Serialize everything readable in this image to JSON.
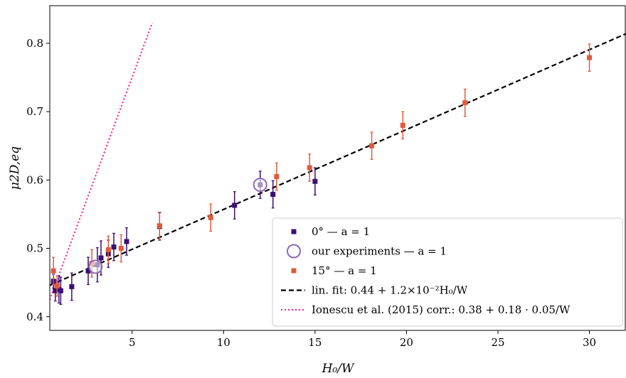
{
  "chart_data": {
    "type": "scatter",
    "xlabel": "H₀/W",
    "ylabel": "μ2D,eq",
    "xlim": [
      0.5,
      32
    ],
    "ylim": [
      0.38,
      0.855
    ],
    "xticks": [
      5,
      10,
      15,
      20,
      25,
      30
    ],
    "yticks": [
      0.4,
      0.5,
      0.6,
      0.7,
      0.8
    ],
    "grid": false,
    "legend_position": "bottom-right",
    "colors": {
      "zero": "#3b0f70",
      "experiments": "#8c6bb1",
      "fifteen": "#e05a3b",
      "fit": "#000000",
      "ionescu": "#ff1493"
    },
    "series": [
      {
        "name": "0° — a = 1",
        "marker": "square",
        "points": [
          {
            "x": 0.7,
            "y": 0.452,
            "err": 0.01
          },
          {
            "x": 0.8,
            "y": 0.438,
            "err": 0.015
          },
          {
            "x": 1.0,
            "y": 0.44,
            "err": 0.02
          },
          {
            "x": 1.1,
            "y": 0.438,
            "err": 0.02
          },
          {
            "x": 1.7,
            "y": 0.444,
            "err": 0.02
          },
          {
            "x": 2.6,
            "y": 0.467,
            "err": 0.02
          },
          {
            "x": 3.1,
            "y": 0.476,
            "err": 0.025
          },
          {
            "x": 3.3,
            "y": 0.486,
            "err": 0.025
          },
          {
            "x": 3.7,
            "y": 0.492,
            "err": 0.02
          },
          {
            "x": 4.0,
            "y": 0.502,
            "err": 0.02
          },
          {
            "x": 4.7,
            "y": 0.51,
            "err": 0.02
          },
          {
            "x": 6.5,
            "y": 0.532,
            "err": 0.02
          },
          {
            "x": 10.6,
            "y": 0.563,
            "err": 0.02
          },
          {
            "x": 12.0,
            "y": 0.593,
            "err": 0.02
          },
          {
            "x": 12.7,
            "y": 0.579,
            "err": 0.02
          },
          {
            "x": 15.0,
            "y": 0.598,
            "err": 0.02
          }
        ]
      },
      {
        "name": "our experiments — a = 1",
        "marker": "circle",
        "points": [
          {
            "x": 3.0,
            "y": 0.473
          },
          {
            "x": 12.0,
            "y": 0.593
          }
        ]
      },
      {
        "name": "15° — a = 1",
        "marker": "square",
        "points": [
          {
            "x": 0.7,
            "y": 0.467,
            "err": 0.02
          },
          {
            "x": 0.9,
            "y": 0.445,
            "err": 0.015
          },
          {
            "x": 2.8,
            "y": 0.478,
            "err": 0.02
          },
          {
            "x": 3.7,
            "y": 0.498,
            "err": 0.02
          },
          {
            "x": 4.4,
            "y": 0.5,
            "err": 0.02
          },
          {
            "x": 6.5,
            "y": 0.533,
            "err": 0.02
          },
          {
            "x": 9.3,
            "y": 0.545,
            "err": 0.02
          },
          {
            "x": 12.9,
            "y": 0.605,
            "err": 0.02
          },
          {
            "x": 14.7,
            "y": 0.618,
            "err": 0.02
          },
          {
            "x": 18.1,
            "y": 0.65,
            "err": 0.02
          },
          {
            "x": 19.8,
            "y": 0.68,
            "err": 0.02
          },
          {
            "x": 23.2,
            "y": 0.713,
            "err": 0.02
          },
          {
            "x": 30.0,
            "y": 0.779,
            "err": 0.02
          }
        ]
      },
      {
        "name": "lin. fit: 0.44 + 1.2×10⁻²H₀/W",
        "type": "line",
        "style": "dashed",
        "points": [
          {
            "x": 0.5,
            "y": 0.446
          },
          {
            "x": 32,
            "y": 0.814
          }
        ]
      },
      {
        "name": "Ionescu et al. (2015) corr.: 0.38 + 0.18 · 0.05/W",
        "type": "line",
        "style": "dotted",
        "points": [
          {
            "x": 0.5,
            "y": 0.425
          },
          {
            "x": 6.1,
            "y": 0.83
          }
        ]
      }
    ]
  }
}
